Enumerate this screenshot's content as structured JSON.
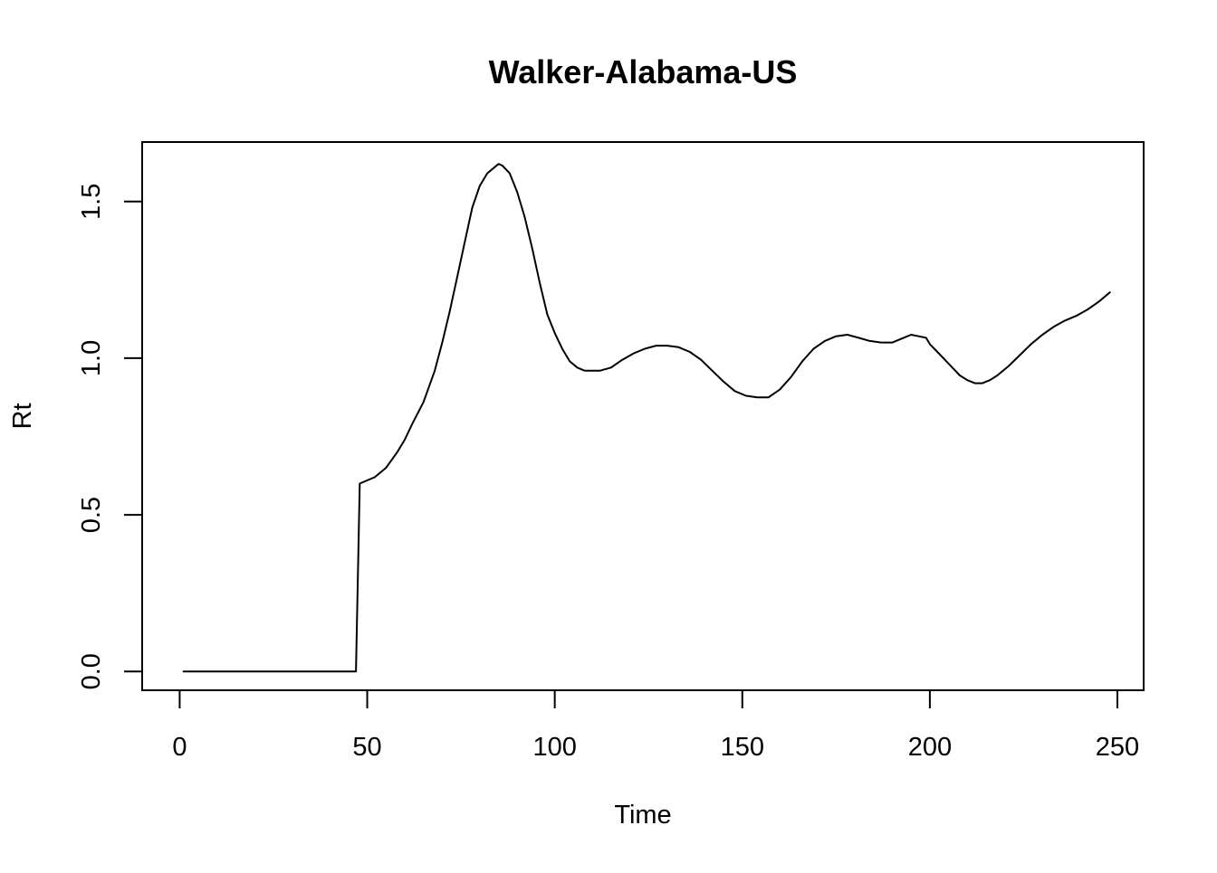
{
  "chart_data": {
    "type": "line",
    "title": "Walker-Alabama-US",
    "xlabel": "Time",
    "ylabel": "Rt",
    "xlim": [
      -10,
      257
    ],
    "ylim": [
      -0.06,
      1.69
    ],
    "xticks": [
      0,
      50,
      100,
      150,
      200,
      250
    ],
    "yticks": [
      0.0,
      0.5,
      1.0,
      1.5
    ],
    "xtick_labels": [
      "0",
      "50",
      "100",
      "150",
      "200",
      "250"
    ],
    "ytick_labels": [
      "0.0",
      "0.5",
      "1.0",
      "1.5"
    ],
    "grid": false,
    "legend": "none",
    "series": [
      {
        "color": "#000000",
        "points": [
          [
            1,
            0.0
          ],
          [
            10,
            0.0
          ],
          [
            20,
            0.0
          ],
          [
            30,
            0.0
          ],
          [
            40,
            0.0
          ],
          [
            47,
            0.0
          ],
          [
            48,
            0.6
          ],
          [
            50,
            0.61
          ],
          [
            52,
            0.62
          ],
          [
            55,
            0.65
          ],
          [
            58,
            0.7
          ],
          [
            60,
            0.74
          ],
          [
            62,
            0.79
          ],
          [
            65,
            0.86
          ],
          [
            68,
            0.96
          ],
          [
            70,
            1.05
          ],
          [
            72,
            1.15
          ],
          [
            74,
            1.26
          ],
          [
            76,
            1.37
          ],
          [
            78,
            1.48
          ],
          [
            80,
            1.55
          ],
          [
            82,
            1.59
          ],
          [
            84,
            1.61
          ],
          [
            85,
            1.62
          ],
          [
            86,
            1.615
          ],
          [
            88,
            1.59
          ],
          [
            90,
            1.53
          ],
          [
            92,
            1.45
          ],
          [
            94,
            1.35
          ],
          [
            96,
            1.24
          ],
          [
            98,
            1.14
          ],
          [
            100,
            1.08
          ],
          [
            102,
            1.03
          ],
          [
            104,
            0.99
          ],
          [
            106,
            0.97
          ],
          [
            108,
            0.96
          ],
          [
            110,
            0.96
          ],
          [
            112,
            0.96
          ],
          [
            115,
            0.97
          ],
          [
            118,
            0.995
          ],
          [
            121,
            1.015
          ],
          [
            124,
            1.03
          ],
          [
            127,
            1.04
          ],
          [
            130,
            1.04
          ],
          [
            133,
            1.035
          ],
          [
            136,
            1.02
          ],
          [
            139,
            0.995
          ],
          [
            142,
            0.96
          ],
          [
            145,
            0.925
          ],
          [
            148,
            0.895
          ],
          [
            151,
            0.88
          ],
          [
            154,
            0.875
          ],
          [
            157,
            0.875
          ],
          [
            160,
            0.9
          ],
          [
            163,
            0.94
          ],
          [
            166,
            0.99
          ],
          [
            169,
            1.03
          ],
          [
            172,
            1.055
          ],
          [
            175,
            1.07
          ],
          [
            178,
            1.075
          ],
          [
            181,
            1.065
          ],
          [
            184,
            1.055
          ],
          [
            187,
            1.05
          ],
          [
            190,
            1.05
          ],
          [
            193,
            1.065
          ],
          [
            195,
            1.075
          ],
          [
            197,
            1.07
          ],
          [
            199,
            1.065
          ],
          [
            200,
            1.045
          ],
          [
            202,
            1.02
          ],
          [
            204,
            0.995
          ],
          [
            206,
            0.97
          ],
          [
            208,
            0.945
          ],
          [
            210,
            0.93
          ],
          [
            212,
            0.92
          ],
          [
            214,
            0.92
          ],
          [
            216,
            0.93
          ],
          [
            218,
            0.945
          ],
          [
            221,
            0.975
          ],
          [
            224,
            1.01
          ],
          [
            227,
            1.045
          ],
          [
            230,
            1.075
          ],
          [
            233,
            1.1
          ],
          [
            236,
            1.12
          ],
          [
            239,
            1.135
          ],
          [
            242,
            1.155
          ],
          [
            245,
            1.18
          ],
          [
            248,
            1.21
          ]
        ]
      }
    ]
  }
}
